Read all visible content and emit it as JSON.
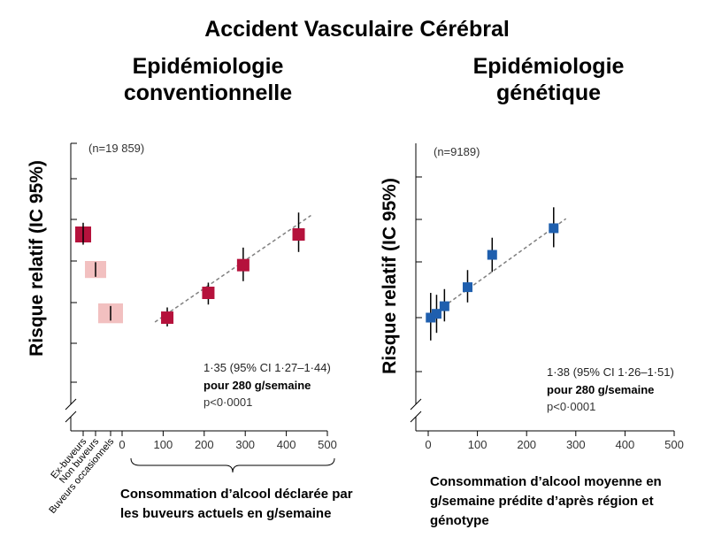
{
  "main_title": "Accident Vasculaire Cérébral",
  "left_title_line1": "Epidémiologie",
  "left_title_line2": "conventionnelle",
  "right_title_line1": "Epidémiologie",
  "right_title_line2": "génétique",
  "left_xcaption_line1": "Consommation d’alcool déclarée par",
  "left_xcaption_line2": "les buveurs actuels en g/semaine",
  "right_xcaption_line1": "Consommation d’alcool moyenne en",
  "right_xcaption_line2": "g/semaine prédite d’après région et",
  "right_xcaption_line3": "génotype",
  "colors": {
    "conventional": "#b5123c",
    "conventional_light": "#f2c0c0",
    "genetic": "#1f5fae",
    "fit_line": "#808080"
  },
  "chart_data": [
    {
      "type": "scatter",
      "ylabel": "Risque relatif (IC 95%)",
      "n_label": "(n=19 859)",
      "x_ticks": [
        0,
        100,
        200,
        300,
        400,
        500
      ],
      "x_ticklabels": [
        "0",
        "100",
        "200",
        "300",
        "400",
        "500"
      ],
      "xlim": [
        0,
        500
      ],
      "category_labels": [
        "Ex-buveurs",
        "Non buveurs",
        "Buveurs occasionnels"
      ],
      "category_points": [
        {
          "label": "Ex-buveurs",
          "y": 1.6,
          "lo": 1.53,
          "hi": 1.68
        },
        {
          "label": "Non buveurs",
          "y": 1.36,
          "lo": 1.31,
          "hi": 1.41
        },
        {
          "label": "Buveurs occasionnels",
          "y": 1.06,
          "lo": 1.01,
          "hi": 1.11
        }
      ],
      "points": [
        {
          "x": 110,
          "y": 1.03,
          "lo": 0.97,
          "hi": 1.1
        },
        {
          "x": 210,
          "y": 1.2,
          "lo": 1.12,
          "hi": 1.27
        },
        {
          "x": 295,
          "y": 1.39,
          "lo": 1.28,
          "hi": 1.51
        },
        {
          "x": 430,
          "y": 1.6,
          "lo": 1.48,
          "hi": 1.75
        }
      ],
      "fit_line": [
        [
          80,
          1.0
        ],
        [
          460,
          1.73
        ]
      ],
      "annotation_line1": "1·35 (95% CI 1·27–1·44)",
      "annotation_line2": "pour 280 g/semaine",
      "annotation_line3": "p<0·0001"
    },
    {
      "type": "scatter",
      "ylabel": "Risque relatif (IC 95%)",
      "n_label": "(n=9189)",
      "x_ticks": [
        0,
        100,
        200,
        300,
        400,
        500
      ],
      "x_ticklabels": [
        "0",
        "100",
        "200",
        "300",
        "400",
        "500"
      ],
      "xlim": [
        0,
        500
      ],
      "points": [
        {
          "x": 5,
          "y": 1.0,
          "lo": 0.88,
          "hi": 1.13
        },
        {
          "x": 17,
          "y": 1.02,
          "lo": 0.92,
          "hi": 1.12
        },
        {
          "x": 33,
          "y": 1.06,
          "lo": 0.98,
          "hi": 1.15
        },
        {
          "x": 80,
          "y": 1.16,
          "lo": 1.08,
          "hi": 1.25
        },
        {
          "x": 130,
          "y": 1.33,
          "lo": 1.24,
          "hi": 1.42
        },
        {
          "x": 255,
          "y": 1.47,
          "lo": 1.37,
          "hi": 1.58
        }
      ],
      "fit_line": [
        [
          0,
          1.0
        ],
        [
          280,
          1.52
        ]
      ],
      "annotation_line1": "1·38 (95% CI 1·26–1·51)",
      "annotation_line2": "pour 280 g/semaine",
      "annotation_line3": "p<0·0001"
    }
  ]
}
